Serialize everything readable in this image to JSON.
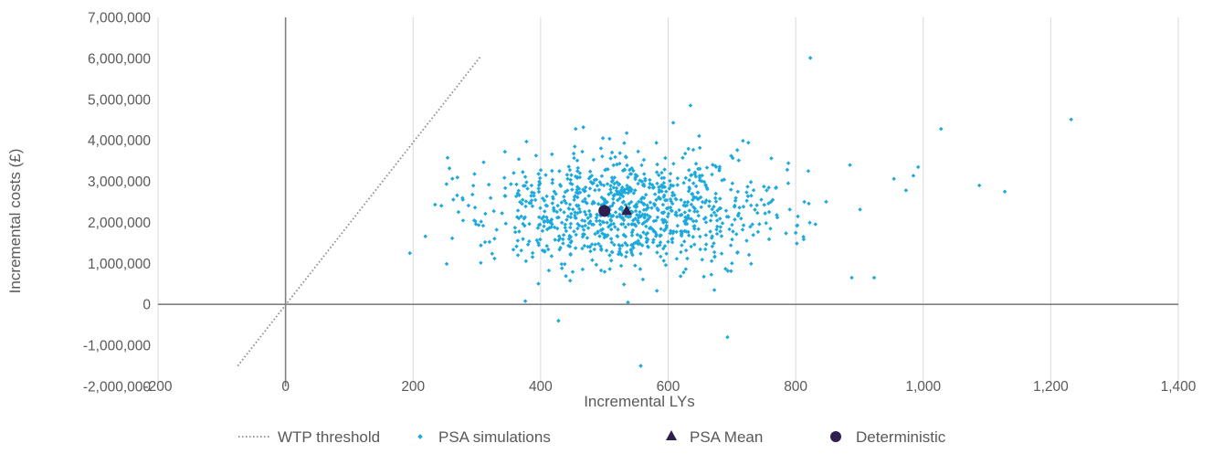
{
  "chart_data": {
    "type": "scatter",
    "title": "",
    "xlabel": "Incremental LYs",
    "ylabel": "Incremental costs (£)",
    "xlim": [
      -200,
      1400
    ],
    "ylim": [
      -2000000,
      7000000
    ],
    "x_ticks": [
      -200,
      0,
      200,
      400,
      600,
      800,
      1000,
      1200,
      1400
    ],
    "x_tick_labels": [
      "-200",
      "0",
      "200",
      "400",
      "600",
      "800",
      "1,000",
      "1,200",
      "1,400"
    ],
    "y_ticks": [
      -2000000,
      -1000000,
      0,
      1000000,
      2000000,
      3000000,
      4000000,
      5000000,
      6000000,
      7000000
    ],
    "y_tick_labels": [
      "-2,000,000",
      "-1,000,000",
      "0",
      "1,000,000",
      "2,000,000",
      "3,000,000",
      "4,000,000",
      "5,000,000",
      "6,000,000",
      "7,000,000"
    ],
    "grid": "vertical",
    "legend_position": "bottom",
    "colors": {
      "psa": "#1ea9dd",
      "mean": "#2e1f4f",
      "det": "#2e1f4f",
      "wtp": "#8a8a8a",
      "axis": "#7f7f7f",
      "grid": "#d9d9d9"
    },
    "series": [
      {
        "name": "WTP threshold",
        "type": "line",
        "style": "dotted",
        "points": [
          [
            -75,
            -1500000
          ],
          [
            305,
            6030000
          ]
        ]
      },
      {
        "name": "PSA simulations",
        "type": "scatter",
        "marker": "diamond",
        "generated": {
          "count": 1000,
          "mean_x": 535,
          "sd_x": 120,
          "mean_y": 2280000,
          "sd_y": 720000,
          "seed": 42
        },
        "points": [
          [
            823,
            6010000
          ],
          [
            1232,
            4510000
          ],
          [
            1128,
            2750000
          ],
          [
            1088,
            2900000
          ],
          [
            1028,
            4280000
          ],
          [
            635,
            4850000
          ],
          [
            557,
            -1500000
          ],
          [
            693,
            -800000
          ],
          [
            428,
            -400000
          ],
          [
            195,
            1250000
          ],
          [
            923,
            650000
          ],
          [
            888,
            650000
          ],
          [
            608,
            4430000
          ],
          [
            467,
            4320000
          ],
          [
            992,
            3350000
          ],
          [
            973,
            2780000
          ],
          [
            376,
            80000
          ],
          [
            537,
            50000
          ],
          [
            455,
            4280000
          ],
          [
            535,
            4180000
          ]
        ]
      },
      {
        "name": "PSA Mean",
        "type": "scatter",
        "marker": "triangle",
        "points": [
          [
            535,
            2280000
          ]
        ]
      },
      {
        "name": "Deterministic",
        "type": "scatter",
        "marker": "circle",
        "points": [
          [
            500,
            2280000
          ]
        ]
      }
    ]
  }
}
